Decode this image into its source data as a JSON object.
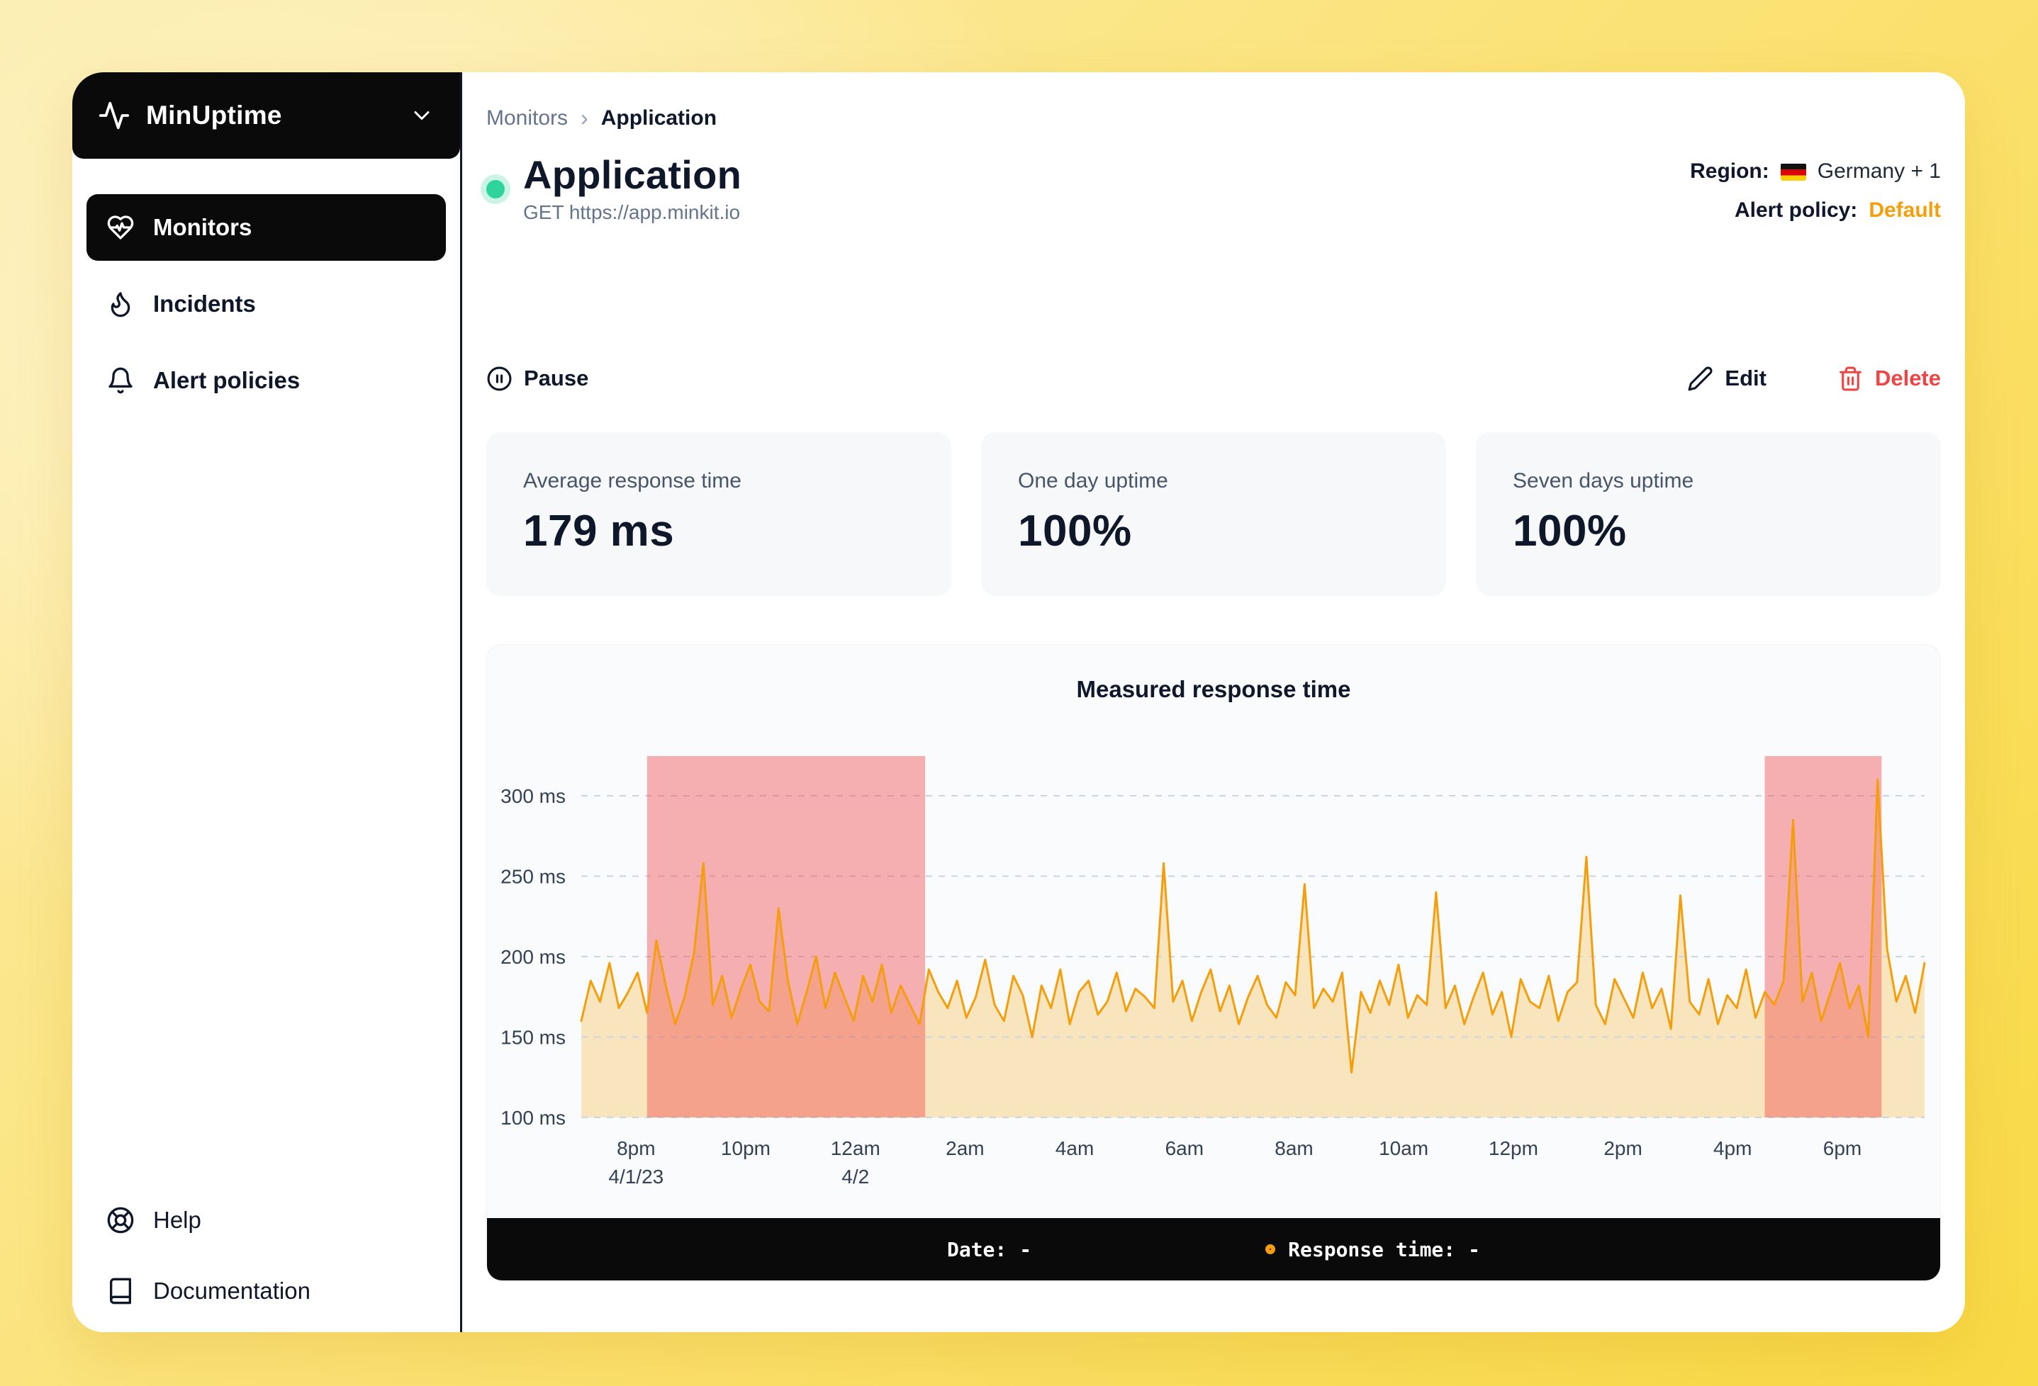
{
  "app": {
    "name": "MinUptime"
  },
  "sidebar": {
    "items": [
      {
        "label": "Monitors",
        "active": true
      },
      {
        "label": "Incidents",
        "active": false
      },
      {
        "label": "Alert policies",
        "active": false
      }
    ],
    "footer_items": [
      {
        "label": "Help"
      },
      {
        "label": "Documentation"
      }
    ]
  },
  "breadcrumb": {
    "parent": "Monitors",
    "current": "Application"
  },
  "header": {
    "title": "Application",
    "subtitle": "GET https://app.minkit.io",
    "region_label": "Region:",
    "region_value": "Germany + 1",
    "alert_policy_label": "Alert policy:",
    "alert_policy_value": "Default"
  },
  "actions": {
    "pause": "Pause",
    "edit": "Edit",
    "delete": "Delete"
  },
  "stats": [
    {
      "label": "Average response time",
      "value": "179 ms"
    },
    {
      "label": "One day uptime",
      "value": "100%"
    },
    {
      "label": "Seven days uptime",
      "value": "100%"
    }
  ],
  "tooltip_bar": {
    "date_label": "Date:",
    "date_value": "-",
    "response_label": "Response time:",
    "response_value": "-"
  },
  "colors": {
    "accent_orange": "#f59e0b",
    "danger_red": "#ef4444",
    "status_green": "#2fd49c",
    "sidebar_black": "#0a0a0a"
  },
  "chart_data": {
    "type": "line",
    "title": "Measured response time",
    "unit": "ms",
    "ylim": [
      100,
      300
    ],
    "y_ticks": [
      300,
      250,
      200,
      150,
      100
    ],
    "y_tick_suffix": " ms",
    "grid": true,
    "legend": "none",
    "x_ticks": [
      {
        "label": "8pm",
        "sub": "4/1/23",
        "f": 0.0408
      },
      {
        "label": "10pm",
        "f": 0.1224
      },
      {
        "label": "12am",
        "sub": "4/2",
        "f": 0.2041
      },
      {
        "label": "2am",
        "f": 0.2857
      },
      {
        "label": "4am",
        "f": 0.3673
      },
      {
        "label": "6am",
        "f": 0.449
      },
      {
        "label": "8am",
        "f": 0.5306
      },
      {
        "label": "10am",
        "f": 0.6122
      },
      {
        "label": "12pm",
        "f": 0.6939
      },
      {
        "label": "2pm",
        "f": 0.7755
      },
      {
        "label": "4pm",
        "f": 0.8571
      },
      {
        "label": "6pm",
        "f": 0.9388
      }
    ],
    "incident_regions": [
      {
        "from_f": 0.049,
        "to_f": 0.256
      },
      {
        "from_f": 0.881,
        "to_f": 0.968
      }
    ],
    "line_color": "#f59e0b",
    "area_color": "rgba(246,183,60,0.32)",
    "region_color": "rgba(239,68,68,0.42)",
    "series": [
      {
        "name": "response_time_ms",
        "values": [
          160,
          185,
          172,
          196,
          168,
          178,
          190,
          165,
          210,
          182,
          158,
          175,
          202,
          258,
          170,
          188,
          162,
          180,
          195,
          172,
          166,
          230,
          185,
          158,
          178,
          200,
          168,
          190,
          175,
          160,
          188,
          172,
          195,
          165,
          182,
          170,
          158,
          192,
          178,
          168,
          185,
          162,
          175,
          198,
          170,
          160,
          188,
          176,
          150,
          182,
          168,
          192,
          158,
          178,
          185,
          164,
          172,
          190,
          166,
          180,
          175,
          168,
          258,
          172,
          185,
          160,
          178,
          192,
          166,
          182,
          158,
          175,
          188,
          170,
          162,
          184,
          176,
          245,
          168,
          180,
          172,
          190,
          128,
          178,
          165,
          185,
          170,
          195,
          162,
          176,
          170,
          240,
          168,
          182,
          158,
          175,
          190,
          164,
          178,
          150,
          186,
          172,
          168,
          188,
          160,
          178,
          184,
          262,
          170,
          158,
          186,
          174,
          162,
          190,
          168,
          180,
          155,
          238,
          172,
          164,
          186,
          158,
          176,
          168,
          192,
          162,
          178,
          170,
          185,
          285,
          172,
          190,
          160,
          178,
          196,
          168,
          182,
          150,
          310,
          205,
          172,
          188,
          165,
          196
        ]
      }
    ]
  }
}
